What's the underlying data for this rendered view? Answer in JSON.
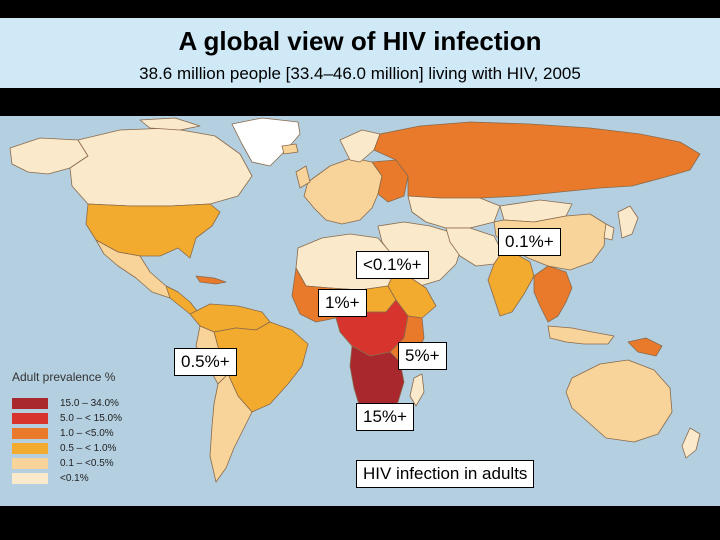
{
  "header": {
    "title": "A global view of HIV infection",
    "subtitle": "38.6 million people [33.4–46.0 million] living with HIV, 2005"
  },
  "legend": {
    "title": "Adult prevalence %",
    "items": [
      {
        "range": "15.0  –  34.0%",
        "color": "#a8282d"
      },
      {
        "range": "5.0  –  < 15.0%",
        "color": "#d7342d"
      },
      {
        "range": "1.0  –  <5.0%",
        "color": "#ea7a2b"
      },
      {
        "range": "0.5  –  < 1.0%",
        "color": "#f3ab2f"
      },
      {
        "range": "0.1  –  <0.5%",
        "color": "#f8d49a"
      },
      {
        "range": "<0.1%",
        "color": "#fbe9cb"
      }
    ]
  },
  "callouts": {
    "east_asia": "0.1%+",
    "north_africa": "<0.1%+",
    "west_africa": "1%+",
    "latin_america": "0.5%+",
    "east_africa": "5%+",
    "southern_africa": "15%+",
    "caption": "HIV infection in adults"
  },
  "colors": {
    "ocean": "#b3cfe0",
    "header_bg": "#cfe9f7",
    "no_data": "#ffffff",
    "border": "#8a6a4a"
  }
}
